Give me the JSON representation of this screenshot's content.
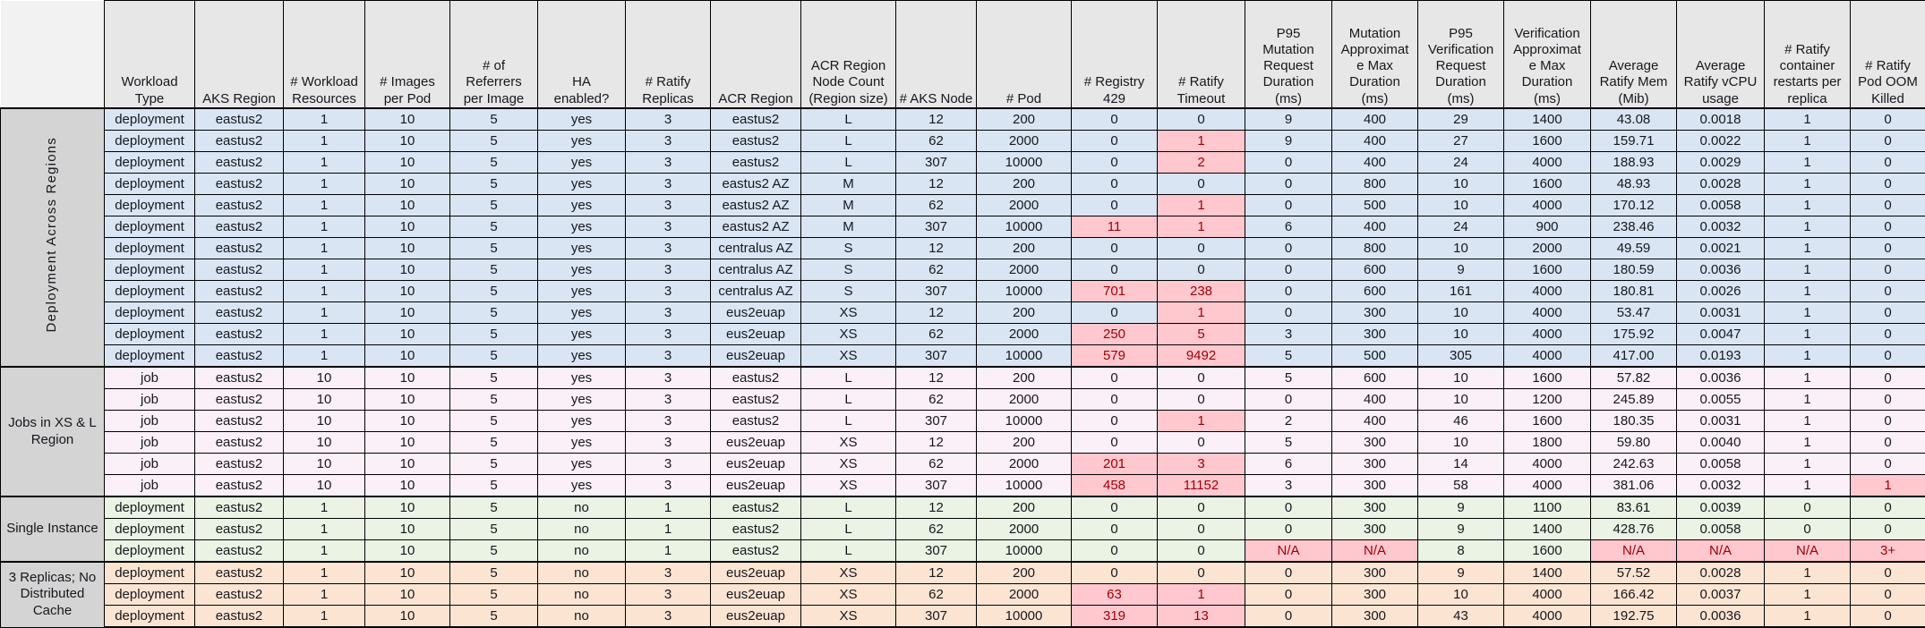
{
  "colors": {
    "header_bg": "#e8e7e7",
    "corner_bg": "#f2f2f2",
    "group_label_bg": "#d4d4d4",
    "grid": "#000000",
    "text": "#15181d",
    "highlight_fill": "#ffc7ce",
    "highlight_text": "#9c0006"
  },
  "chart_data": {
    "type": "table",
    "columns": [
      "Workload\nType",
      "AKS Region",
      "# Workload\nResources",
      "# Images\nper Pod",
      "# of\nReferrers\nper Image",
      "HA\nenabled?",
      "# Ratify\nReplicas",
      "ACR Region",
      "ACR Region\nNode Count\n(Region size)",
      "# AKS Node",
      "# Pod",
      "# Registry\n429",
      "# Ratify\nTimeout",
      "P95\nMutation\nRequest\nDuration\n(ms)",
      "Mutation\nApproximat\ne Max\nDuration\n(ms)",
      "P95\nVerification\nRequest\nDuration\n(ms)",
      "Verification\nApproximat\ne Max\nDuration\n(ms)",
      "Average\nRatify Mem\n(Mib)",
      "Average\nRatify vCPU\nusage",
      "# Ratify\ncontainer\nrestarts per\nreplica",
      "# Ratify\nPod OOM\nKilled"
    ],
    "groups": [
      {
        "label": "Deployment Across Regions",
        "orientation": "vertical",
        "color": "#d9e5f3",
        "rows": [
          {
            "cells": [
              "deployment",
              "eastus2",
              "1",
              "10",
              "5",
              "yes",
              "3",
              "eastus2",
              "L",
              "12",
              "200",
              "0",
              "0",
              "9",
              "400",
              "29",
              "1400",
              "43.08",
              "0.0018",
              "1",
              "0"
            ]
          },
          {
            "cells": [
              "deployment",
              "eastus2",
              "1",
              "10",
              "5",
              "yes",
              "3",
              "eastus2",
              "L",
              "62",
              "2000",
              "0",
              {
                "v": "1",
                "h": true
              },
              "9",
              "400",
              "27",
              "1600",
              "159.71",
              "0.0022",
              "1",
              "0"
            ]
          },
          {
            "cells": [
              "deployment",
              "eastus2",
              "1",
              "10",
              "5",
              "yes",
              "3",
              "eastus2",
              "L",
              "307",
              "10000",
              "0",
              {
                "v": "2",
                "h": true
              },
              "0",
              "400",
              "24",
              "4000",
              "188.93",
              "0.0029",
              "1",
              "0"
            ]
          },
          {
            "cells": [
              "deployment",
              "eastus2",
              "1",
              "10",
              "5",
              "yes",
              "3",
              "eastus2 AZ",
              "M",
              "12",
              "200",
              "0",
              "0",
              "0",
              "800",
              "10",
              "1600",
              "48.93",
              "0.0028",
              "1",
              "0"
            ]
          },
          {
            "cells": [
              "deployment",
              "eastus2",
              "1",
              "10",
              "5",
              "yes",
              "3",
              "eastus2 AZ",
              "M",
              "62",
              "2000",
              "0",
              {
                "v": "1",
                "h": true
              },
              "0",
              "500",
              "10",
              "4000",
              "170.12",
              "0.0058",
              "1",
              "0"
            ]
          },
          {
            "cells": [
              "deployment",
              "eastus2",
              "1",
              "10",
              "5",
              "yes",
              "3",
              "eastus2 AZ",
              "M",
              "307",
              "10000",
              {
                "v": "11",
                "h": true
              },
              {
                "v": "1",
                "h": true
              },
              "6",
              "400",
              "24",
              "900",
              "238.46",
              "0.0032",
              "1",
              "0"
            ]
          },
          {
            "cells": [
              "deployment",
              "eastus2",
              "1",
              "10",
              "5",
              "yes",
              "3",
              "centralus AZ",
              "S",
              "12",
              "200",
              "0",
              "0",
              "0",
              "800",
              "10",
              "2000",
              "49.59",
              "0.0021",
              "1",
              "0"
            ]
          },
          {
            "cells": [
              "deployment",
              "eastus2",
              "1",
              "10",
              "5",
              "yes",
              "3",
              "centralus AZ",
              "S",
              "62",
              "2000",
              "0",
              "0",
              "0",
              "600",
              "9",
              "1600",
              "180.59",
              "0.0036",
              "1",
              "0"
            ]
          },
          {
            "cells": [
              "deployment",
              "eastus2",
              "1",
              "10",
              "5",
              "yes",
              "3",
              "centralus AZ",
              "S",
              "307",
              "10000",
              {
                "v": "701",
                "h": true
              },
              {
                "v": "238",
                "h": true
              },
              "0",
              "600",
              "161",
              "4000",
              "180.81",
              "0.0026",
              "1",
              "0"
            ]
          },
          {
            "cells": [
              "deployment",
              "eastus2",
              "1",
              "10",
              "5",
              "yes",
              "3",
              "eus2euap",
              "XS",
              "12",
              "200",
              "0",
              {
                "v": "1",
                "h": true
              },
              "0",
              "300",
              "10",
              "4000",
              "53.47",
              "0.0031",
              "1",
              "0"
            ]
          },
          {
            "cells": [
              "deployment",
              "eastus2",
              "1",
              "10",
              "5",
              "yes",
              "3",
              "eus2euap",
              "XS",
              "62",
              "2000",
              {
                "v": "250",
                "h": true
              },
              {
                "v": "5",
                "h": true
              },
              "3",
              "300",
              "10",
              "4000",
              "175.92",
              "0.0047",
              "1",
              "0"
            ]
          },
          {
            "cells": [
              "deployment",
              "eastus2",
              "1",
              "10",
              "5",
              "yes",
              "3",
              "eus2euap",
              "XS",
              "307",
              "10000",
              {
                "v": "579",
                "h": true
              },
              {
                "v": "9492",
                "h": true
              },
              "5",
              "500",
              "305",
              "4000",
              "417.00",
              "0.0193",
              "1",
              "0"
            ]
          }
        ]
      },
      {
        "label": "Jobs in XS & L Region",
        "orientation": "horizontal",
        "color": "#fbf0f8",
        "rows": [
          {
            "cells": [
              "job",
              "eastus2",
              "10",
              "10",
              "5",
              "yes",
              "3",
              "eastus2",
              "L",
              "12",
              "200",
              "0",
              "0",
              "5",
              "600",
              "10",
              "1600",
              "57.82",
              "0.0036",
              "1",
              "0"
            ]
          },
          {
            "cells": [
              "job",
              "eastus2",
              "10",
              "10",
              "5",
              "yes",
              "3",
              "eastus2",
              "L",
              "62",
              "2000",
              "0",
              "0",
              "0",
              "400",
              "10",
              "1200",
              "245.89",
              "0.0055",
              "1",
              "0"
            ]
          },
          {
            "cells": [
              "job",
              "eastus2",
              "10",
              "10",
              "5",
              "yes",
              "3",
              "eastus2",
              "L",
              "307",
              "10000",
              "0",
              {
                "v": "1",
                "h": true
              },
              "2",
              "400",
              "46",
              "1600",
              "180.35",
              "0.0031",
              "1",
              "0"
            ]
          },
          {
            "cells": [
              "job",
              "eastus2",
              "10",
              "10",
              "5",
              "yes",
              "3",
              "eus2euap",
              "XS",
              "12",
              "200",
              "0",
              "0",
              "5",
              "300",
              "10",
              "1800",
              "59.80",
              "0.0040",
              "1",
              "0"
            ]
          },
          {
            "cells": [
              "job",
              "eastus2",
              "10",
              "10",
              "5",
              "yes",
              "3",
              "eus2euap",
              "XS",
              "62",
              "2000",
              {
                "v": "201",
                "h": true
              },
              {
                "v": "3",
                "h": true
              },
              "6",
              "300",
              "14",
              "4000",
              "242.63",
              "0.0058",
              "1",
              "0"
            ]
          },
          {
            "cells": [
              "job",
              "eastus2",
              "10",
              "10",
              "5",
              "yes",
              "3",
              "eus2euap",
              "XS",
              "307",
              "10000",
              {
                "v": "458",
                "h": true
              },
              {
                "v": "11152",
                "h": true
              },
              "3",
              "300",
              "58",
              "4000",
              "381.06",
              "0.0032",
              "1",
              {
                "v": "1",
                "h": true
              }
            ]
          }
        ]
      },
      {
        "label": "Single Instance",
        "orientation": "horizontal",
        "color": "#eaf3e4",
        "rows": [
          {
            "cells": [
              "deployment",
              "eastus2",
              "1",
              "10",
              "5",
              "no",
              "1",
              "eastus2",
              "L",
              "12",
              "200",
              "0",
              "0",
              "0",
              "300",
              "9",
              "1100",
              "83.61",
              "0.0039",
              "0",
              "0"
            ]
          },
          {
            "cells": [
              "deployment",
              "eastus2",
              "1",
              "10",
              "5",
              "no",
              "1",
              "eastus2",
              "L",
              "62",
              "2000",
              "0",
              "0",
              "0",
              "300",
              "9",
              "1400",
              "428.76",
              "0.0058",
              "0",
              "0"
            ]
          },
          {
            "cells": [
              "deployment",
              "eastus2",
              "1",
              "10",
              "5",
              "no",
              "1",
              "eastus2",
              "L",
              "307",
              "10000",
              "0",
              "0",
              {
                "v": "N/A",
                "h": true
              },
              {
                "v": "N/A",
                "h": true
              },
              "8",
              "1600",
              {
                "v": "N/A",
                "h": true
              },
              {
                "v": "N/A",
                "h": true
              },
              {
                "v": "N/A",
                "h": true
              },
              {
                "v": "3+",
                "h": true
              }
            ]
          }
        ]
      },
      {
        "label": "3 Replicas; No Distributed Cache",
        "orientation": "horizontal",
        "color": "#fce4d3",
        "rows": [
          {
            "cells": [
              "deployment",
              "eastus2",
              "1",
              "10",
              "5",
              "no",
              "3",
              "eus2euap",
              "XS",
              "12",
              "200",
              "0",
              "0",
              "0",
              "300",
              "9",
              "1400",
              "57.52",
              "0.0028",
              "1",
              "0"
            ]
          },
          {
            "cells": [
              "deployment",
              "eastus2",
              "1",
              "10",
              "5",
              "no",
              "3",
              "eus2euap",
              "XS",
              "62",
              "2000",
              {
                "v": "63",
                "h": true
              },
              {
                "v": "1",
                "h": true
              },
              "0",
              "300",
              "10",
              "4000",
              "166.42",
              "0.0037",
              "1",
              "0"
            ]
          },
          {
            "cells": [
              "deployment",
              "eastus2",
              "1",
              "10",
              "5",
              "no",
              "3",
              "eus2euap",
              "XS",
              "307",
              "10000",
              {
                "v": "319",
                "h": true
              },
              {
                "v": "13",
                "h": true
              },
              "0",
              "300",
              "43",
              "4000",
              "192.75",
              "0.0036",
              "1",
              "0"
            ]
          }
        ]
      }
    ]
  }
}
